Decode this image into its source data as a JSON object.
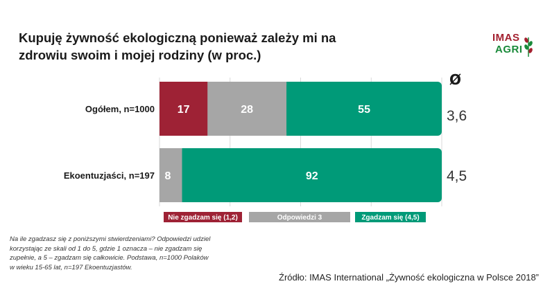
{
  "title": "Kupuję żywność ekologiczną ponieważ zależy mi na zdrowiu swoim i mojej rodziny (w proc.)",
  "logo": {
    "line1": "IMAS",
    "line2": "AGRI"
  },
  "note": "Na ile zgadzasz się z poniższymi stwierdzeniami? Odpowiedzi udziel korzystając ze skali od 1 do 5, gdzie 1 oznacza – nie zgadzam się zupełnie, a 5 – zgadzam się całkowicie. Podstawa, n=1000 Polaków w wieku 15-65 lat, n=197 Ekoentuzjastów.",
  "source": "Źródło: IMAS International „Żywność ekologiczna w Polsce 2018”",
  "colors": {
    "disagree": "#9e2235",
    "neutral": "#a6a6a6",
    "agree": "#009a78"
  },
  "chart_data": {
    "type": "bar",
    "orientation": "horizontal",
    "stacked": true,
    "xlim": [
      0,
      100
    ],
    "grid": true,
    "legend_position": "bottom",
    "categories": [
      "Ogółem, n=1000",
      "Ekoentuzjaści, n=197"
    ],
    "series": [
      {
        "name": "Nie zgadzam się (1,2)",
        "values": [
          17,
          0
        ],
        "color": "#9e2235"
      },
      {
        "name": "Odpowiedzi 3",
        "values": [
          28,
          8
        ],
        "color": "#a6a6a6"
      },
      {
        "name": "Zgadzam się (4,5)",
        "values": [
          55,
          92
        ],
        "color": "#009a78"
      }
    ],
    "mean_header": "Ø",
    "means": [
      "3,6",
      "4,5"
    ]
  }
}
